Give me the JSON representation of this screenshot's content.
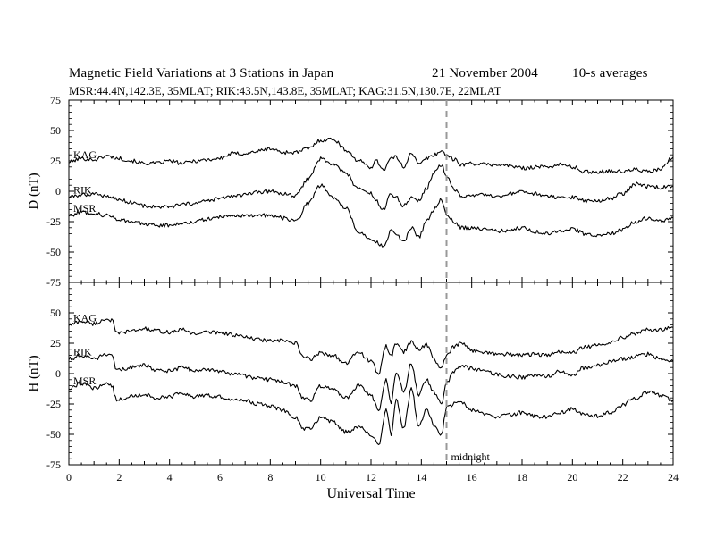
{
  "header": {
    "title": "Magnetic Field Variations at 3 Stations in Japan",
    "date": "21 November 2004",
    "averaging": "10-s averages",
    "stations": "MSR:44.4N,142.3E, 35MLAT;   RIK:43.5N,143.8E, 35MLAT;   KAG:31.5N,130.7E, 22MLAT"
  },
  "chart_data": [
    {
      "type": "line",
      "panel": "D",
      "ylabel": "D (nT)",
      "ylim": [
        -75,
        75
      ],
      "yticks": [
        75,
        50,
        25,
        0,
        -25,
        -50,
        -75
      ],
      "xlim": [
        0,
        24
      ],
      "xticks": [
        0,
        2,
        4,
        6,
        8,
        10,
        12,
        14,
        16,
        18,
        20,
        22,
        24
      ],
      "series": [
        {
          "name": "KAG",
          "x": [
            0,
            0.5,
            1,
            1.5,
            2,
            2.5,
            3,
            3.5,
            4,
            4.5,
            5,
            5.5,
            6,
            6.5,
            7,
            7.5,
            8,
            8.5,
            9,
            9.5,
            10,
            10.5,
            11,
            11.5,
            12,
            12.2,
            12.5,
            12.8,
            13,
            13.3,
            13.6,
            13.9,
            14.2,
            14.5,
            14.8,
            15,
            15.3,
            15.6,
            16,
            16.5,
            17,
            17.5,
            18,
            18.5,
            19,
            19.5,
            20,
            20.5,
            21,
            21.5,
            22,
            22.5,
            23,
            23.5,
            24
          ],
          "values": [
            24,
            27,
            26,
            29,
            27,
            25,
            23,
            23,
            25,
            23,
            25,
            26,
            27,
            31,
            31,
            33,
            35,
            32,
            32,
            35,
            42,
            43,
            34,
            25,
            20,
            25,
            18,
            27,
            28,
            20,
            32,
            22,
            27,
            30,
            33,
            30,
            26,
            22,
            23,
            22,
            22,
            21,
            19,
            20,
            20,
            22,
            20,
            16,
            16,
            17,
            16,
            18,
            16,
            18,
            28
          ]
        },
        {
          "name": "RIK",
          "x": [
            0,
            0.5,
            1,
            1.5,
            2,
            2.5,
            3,
            3.5,
            4,
            4.5,
            5,
            5.5,
            6,
            6.5,
            7,
            7.5,
            8,
            8.5,
            9,
            9.5,
            10,
            10.5,
            11,
            11.5,
            12,
            12.2,
            12.5,
            12.8,
            13,
            13.3,
            13.6,
            13.9,
            14.2,
            14.5,
            14.8,
            15,
            15.3,
            15.6,
            16,
            16.5,
            17,
            17.5,
            18,
            18.5,
            19,
            19.5,
            20,
            20.5,
            21,
            21.5,
            22,
            22.5,
            23,
            23.5,
            24
          ],
          "values": [
            -5,
            -3,
            -2,
            -4,
            -7,
            -9,
            -12,
            -13,
            -13,
            -11,
            -10,
            -8,
            -6,
            -4,
            -3,
            -1,
            0,
            -2,
            -4,
            10,
            27,
            22,
            15,
            2,
            -2,
            -8,
            -15,
            -2,
            -5,
            -12,
            -5,
            -8,
            2,
            15,
            22,
            12,
            2,
            -5,
            -4,
            -3,
            -5,
            -2,
            -1,
            -2,
            -4,
            -6,
            -5,
            -8,
            -8,
            -6,
            -2,
            6,
            4,
            3,
            4
          ]
        },
        {
          "name": "MSR",
          "x": [
            0,
            0.5,
            1,
            1.5,
            2,
            2.5,
            3,
            3.5,
            4,
            4.5,
            5,
            5.5,
            6,
            6.5,
            7,
            7.5,
            8,
            8.5,
            9,
            9.5,
            10,
            10.5,
            11,
            11.5,
            12,
            12.2,
            12.5,
            12.8,
            13,
            13.3,
            13.6,
            13.9,
            14.2,
            14.5,
            14.8,
            15,
            15.3,
            15.6,
            16,
            16.5,
            17,
            17.5,
            18,
            18.5,
            19,
            19.5,
            20,
            20.5,
            21,
            21.5,
            22,
            22.5,
            23,
            23.5,
            24
          ],
          "values": [
            -20,
            -17,
            -18,
            -20,
            -23,
            -25,
            -27,
            -28,
            -28,
            -26,
            -25,
            -23,
            -21,
            -20,
            -20,
            -20,
            -20,
            -22,
            -25,
            -10,
            5,
            -5,
            -14,
            -33,
            -40,
            -42,
            -45,
            -33,
            -36,
            -42,
            -30,
            -38,
            -25,
            -15,
            -7,
            -20,
            -25,
            -30,
            -30,
            -31,
            -33,
            -32,
            -30,
            -33,
            -35,
            -33,
            -31,
            -35,
            -36,
            -35,
            -32,
            -25,
            -22,
            -25,
            -22
          ]
        }
      ]
    },
    {
      "type": "line",
      "panel": "H",
      "ylabel": "H (nT)",
      "ylim": [
        -75,
        75
      ],
      "yticks": [
        50,
        25,
        0,
        -25,
        -50,
        -75
      ],
      "xlim": [
        0,
        24
      ],
      "xticks": [
        0,
        2,
        4,
        6,
        8,
        10,
        12,
        14,
        16,
        18,
        20,
        22,
        24
      ],
      "xlabel": "Universal Time",
      "series": [
        {
          "name": "KAG",
          "x": [
            0,
            0.5,
            1,
            1.5,
            1.7,
            1.9,
            2.5,
            3,
            3.5,
            4,
            4.5,
            5,
            5.5,
            6,
            6.5,
            7,
            7.5,
            8,
            8.5,
            9,
            9.3,
            9.6,
            10,
            10.5,
            11,
            11.5,
            12,
            12.3,
            12.6,
            12.8,
            13,
            13.3,
            13.6,
            13.9,
            14.2,
            14.5,
            14.8,
            15,
            15.3,
            15.6,
            16,
            16.5,
            17,
            17.5,
            18,
            18.5,
            19,
            19.5,
            20,
            20.5,
            21,
            21.5,
            22,
            22.5,
            23,
            23.5,
            24
          ],
          "values": [
            40,
            43,
            41,
            45,
            44,
            33,
            35,
            37,
            35,
            34,
            36,
            33,
            34,
            34,
            32,
            30,
            28,
            27,
            27,
            25,
            14,
            12,
            17,
            15,
            8,
            18,
            10,
            0,
            23,
            14,
            25,
            18,
            26,
            20,
            24,
            12,
            4,
            15,
            22,
            25,
            19,
            18,
            16,
            16,
            15,
            16,
            15,
            18,
            17,
            22,
            23,
            26,
            30,
            33,
            36,
            36,
            38
          ]
        },
        {
          "name": "RIK",
          "x": [
            0,
            0.5,
            1,
            1.5,
            1.7,
            1.9,
            2.5,
            3,
            3.5,
            4,
            4.5,
            5,
            5.5,
            6,
            6.5,
            7,
            7.5,
            8,
            8.5,
            9,
            9.3,
            9.6,
            10,
            10.5,
            11,
            11.5,
            12,
            12.3,
            12.6,
            12.8,
            13,
            13.3,
            13.6,
            13.9,
            14.2,
            14.5,
            14.8,
            15,
            15.3,
            15.6,
            16,
            16.5,
            17,
            17.5,
            18,
            18.5,
            19,
            19.5,
            20,
            20.5,
            21,
            21.5,
            22,
            22.5,
            23,
            23.5,
            24
          ],
          "values": [
            12,
            15,
            12,
            16,
            14,
            3,
            5,
            7,
            3,
            2,
            5,
            2,
            3,
            2,
            0,
            -2,
            -4,
            -5,
            -7,
            -10,
            -20,
            -22,
            -10,
            -13,
            -20,
            -10,
            -18,
            -30,
            -5,
            -25,
            2,
            -15,
            8,
            -18,
            -5,
            -16,
            -24,
            -8,
            2,
            6,
            4,
            2,
            -1,
            -2,
            -3,
            -1,
            -2,
            2,
            -1,
            5,
            7,
            10,
            12,
            14,
            16,
            12,
            10
          ]
        },
        {
          "name": "MSR",
          "x": [
            0,
            0.5,
            1,
            1.5,
            1.7,
            1.9,
            2.5,
            3,
            3.5,
            4,
            4.5,
            5,
            5.5,
            6,
            6.5,
            7,
            7.5,
            8,
            8.5,
            9,
            9.3,
            9.6,
            10,
            10.5,
            11,
            11.5,
            12,
            12.3,
            12.6,
            12.8,
            13,
            13.3,
            13.6,
            13.9,
            14.2,
            14.5,
            14.8,
            15,
            15.3,
            15.6,
            16,
            16.5,
            17,
            17.5,
            18,
            18.5,
            19,
            19.5,
            20,
            20.5,
            21,
            21.5,
            22,
            22.5,
            23,
            23.5,
            24
          ],
          "values": [
            -12,
            -8,
            -12,
            -8,
            -10,
            -22,
            -18,
            -17,
            -20,
            -19,
            -16,
            -19,
            -18,
            -19,
            -21,
            -22,
            -25,
            -27,
            -30,
            -36,
            -46,
            -45,
            -36,
            -40,
            -48,
            -44,
            -50,
            -58,
            -30,
            -50,
            -22,
            -45,
            -13,
            -43,
            -30,
            -42,
            -50,
            -28,
            -25,
            -24,
            -30,
            -33,
            -36,
            -34,
            -32,
            -35,
            -36,
            -32,
            -29,
            -34,
            -35,
            -32,
            -26,
            -20,
            -15,
            -18,
            -22
          ]
        }
      ]
    }
  ],
  "annotations": {
    "midnight": "midnight",
    "midnight_ut": 15
  },
  "colors": {
    "trace": "#000000",
    "midnight_line": "#999999"
  }
}
